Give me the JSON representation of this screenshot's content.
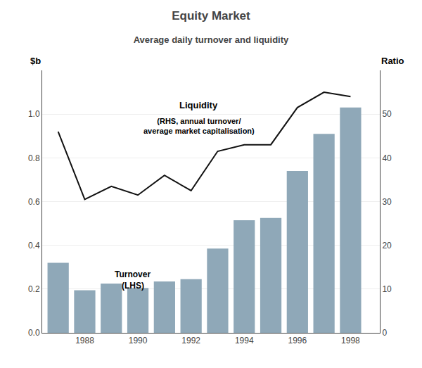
{
  "chart_data": {
    "type": "bar",
    "title": "Equity Market",
    "subtitle": "Average daily turnover and liquidity",
    "ylabel": "$b",
    "y2label": "Ratio",
    "x": [
      1987,
      1988,
      1989,
      1990,
      1991,
      1992,
      1993,
      1994,
      1995,
      1996,
      1997,
      1998
    ],
    "series": [
      {
        "type": "bar",
        "color": "#8fa8b8",
        "values": [
          0.32,
          0.195,
          0.225,
          0.205,
          0.235,
          0.245,
          0.385,
          0.515,
          0.525,
          0.74,
          0.91,
          1.03
        ]
      },
      {
        "type": "line",
        "color": "#111111",
        "axis": "y2",
        "values": [
          46,
          30.5,
          33.5,
          31.5,
          36,
          32.5,
          41.5,
          43,
          43,
          51.5,
          55,
          54
        ]
      }
    ],
    "xlim": [
      1986.4,
      1999.1
    ],
    "xticks": [
      1988,
      1990,
      1992,
      1994,
      1996,
      1998
    ],
    "ylim": [
      0,
      1.2
    ],
    "yticks": [
      {
        "value": 0,
        "label": "0.0"
      },
      0.2,
      0.4,
      0.6,
      0.8,
      {
        "value": 1,
        "label": "1.0"
      }
    ],
    "y2lim": [
      0,
      60
    ],
    "y2ticks": [
      0,
      10,
      20,
      30,
      40,
      50
    ],
    "grid": true,
    "annotations": [
      "Turnover",
      "(LHS)",
      "Liquidity",
      "(RHS, annual turnover/\naverage market capitalisation)"
    ]
  }
}
